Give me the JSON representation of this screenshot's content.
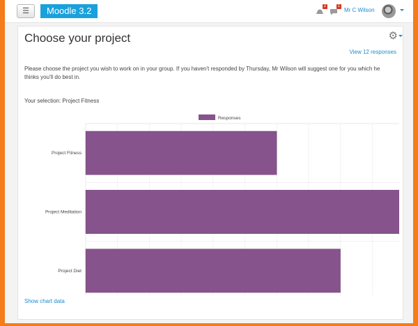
{
  "navbar": {
    "menu_icon": "hamburger-icon",
    "brand": "Moodle 3.2",
    "notifications_count": "2",
    "messages_count": "1",
    "user_name": "Mr C Wilson"
  },
  "page": {
    "title": "Choose your project",
    "view_responses": "View 12 responses",
    "intro": "Please choose the project you wish to work on in your group. If you haven't responded by Thursday, Mr Wilson will suggest one for you which he thinks you'll do best in.",
    "selection": "Your selection: Project Fitness",
    "show_chart_data": "Show chart data"
  },
  "colors": {
    "bar": "#86538d",
    "accent": "#1a8ccf",
    "brand": "#1aa1dc",
    "background": "#f47c1a"
  },
  "chart_data": {
    "type": "bar",
    "orientation": "horizontal",
    "categories": [
      "Project Fitness",
      "Project Meditation",
      "Project Diet"
    ],
    "series": [
      {
        "name": "Responses",
        "values": [
          3,
          5,
          4
        ]
      }
    ],
    "xlim": [
      0,
      5
    ],
    "ticks": [
      "0",
      "0.5",
      "1.0",
      "1.5",
      "2.0",
      "2.5",
      "3.0",
      "3.5",
      "4.0",
      "4.5",
      "5.0"
    ],
    "legend": "top-center",
    "grid": true
  }
}
